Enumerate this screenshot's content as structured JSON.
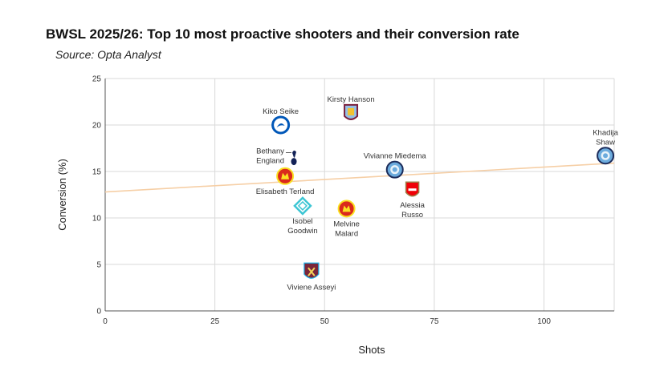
{
  "chart_data": {
    "type": "scatter",
    "title": "BWSL 2025/26: Top 10 most proactive shooters and their conversion rate",
    "subtitle": "Source: Opta Analyst",
    "xlabel": "Shots",
    "ylabel": "Conversion (%)",
    "xlim": [
      0,
      116
    ],
    "ylim": [
      0,
      25
    ],
    "xticks": [
      "0",
      "25",
      "50",
      "75",
      "100"
    ],
    "yticks": [
      "0",
      "5",
      "10",
      "15",
      "20",
      "25"
    ],
    "grid": true,
    "trendline": {
      "x": [
        0,
        116
      ],
      "y": [
        12.8,
        15.9
      ],
      "color": "#f6cfa6"
    },
    "points": [
      {
        "name": "Kiko Seike",
        "label": [
          "Kiko Seike"
        ],
        "x": 40,
        "y": 20,
        "icon": "brighton-crest-icon",
        "label_pos": "above"
      },
      {
        "name": "Kirsty Hanson",
        "label": [
          "Kirsty Hanson"
        ],
        "x": 56,
        "y": 21.3,
        "icon": "aston-villa-crest-icon",
        "label_pos": "above"
      },
      {
        "name": "Bethany England",
        "label": [
          "Bethany",
          "England"
        ],
        "x": 43,
        "y": 16.5,
        "icon": "tottenham-crest-icon",
        "label_pos": "left"
      },
      {
        "name": "Elisabeth Terland",
        "label": [
          "Elisabeth Terland"
        ],
        "x": 41,
        "y": 14.5,
        "icon": "manchester-united-crest-icon",
        "label_pos": "below"
      },
      {
        "name": "Vivianne Miedema",
        "label": [
          "Vivianne Miedema"
        ],
        "x": 66,
        "y": 15.2,
        "icon": "manchester-city-crest-icon",
        "label_pos": "above"
      },
      {
        "name": "Khadija Shaw",
        "label": [
          "Khadija",
          "Shaw"
        ],
        "x": 114,
        "y": 16.7,
        "icon": "manchester-city-crest-icon",
        "label_pos": "above"
      },
      {
        "name": "Alessia Russo",
        "label": [
          "Alessia",
          "Russo"
        ],
        "x": 70,
        "y": 13,
        "icon": "arsenal-crest-icon",
        "label_pos": "below"
      },
      {
        "name": "Isobel Goodwin",
        "label": [
          "Isobel",
          "Goodwin"
        ],
        "x": 45,
        "y": 11.3,
        "icon": "chelsea-crest-icon",
        "label_pos": "below"
      },
      {
        "name": "Melvine Malard",
        "label": [
          "Melvine",
          "Malard"
        ],
        "x": 55,
        "y": 11,
        "icon": "manchester-united-crest-icon",
        "label_pos": "below"
      },
      {
        "name": "Viviene Asseyi",
        "label": [
          "Viviene Asseyi"
        ],
        "x": 47,
        "y": 4.2,
        "icon": "west-ham-crest-icon",
        "label_pos": "below"
      }
    ]
  },
  "colors": {
    "grid": "#d9d9d9",
    "axis": "#555555",
    "trend": "#f6cfa6",
    "brighton": "#0057b8",
    "villa_claret": "#7a1e3b",
    "villa_blue": "#95bfe5",
    "spurs": "#132257",
    "man_utd": "#da291c",
    "man_utd_gold": "#fbe122",
    "man_city": "#6cabdd",
    "arsenal": "#ef0107",
    "chelsea": "#3ec6d4",
    "west_ham": "#7a263a"
  }
}
